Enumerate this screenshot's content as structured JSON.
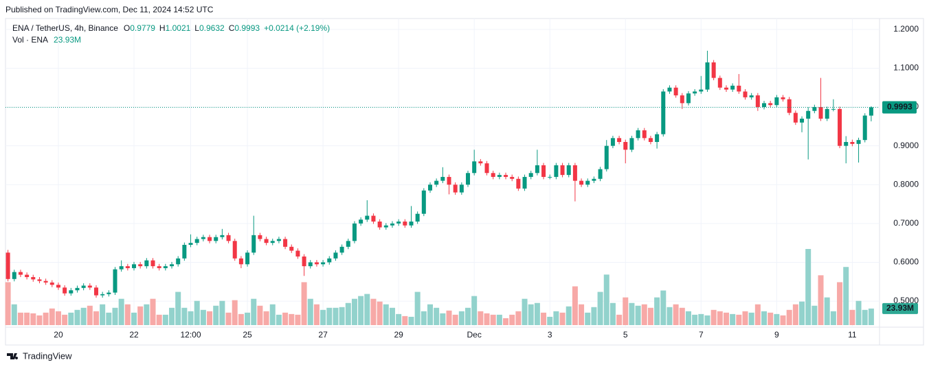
{
  "chart_data": {
    "type": "candlestick",
    "published": "Published on TradingView.com, Dec 11, 2024 14:52 UTC",
    "symbol": "ENA / TetherUS, 4h, Binance",
    "o_label": "O",
    "h_label": "H",
    "l_label": "L",
    "c_label": "C",
    "change": "+0.0214 (+2.19%)",
    "volume_title": "Vol · ENA",
    "volume_label": "23.93M",
    "brand": "TradingView",
    "up_color": "#089981",
    "down_color": "#f23645",
    "vol_up_color": "#92d2cc",
    "vol_down_color": "#f7a9a7",
    "grid": true,
    "ylim": [
      0.433,
      1.228
    ],
    "vlim": [
      0,
      110
    ],
    "yticks": [
      {
        "value": 0.5,
        "label": "0.5000"
      },
      {
        "value": 0.6,
        "label": "0.6000"
      },
      {
        "value": 0.7,
        "label": "0.7000"
      },
      {
        "value": 0.8,
        "label": "0.8000"
      },
      {
        "value": 0.9,
        "label": "0.9000"
      },
      {
        "value": 1.0,
        "label": "1.0000"
      },
      {
        "value": 1.1,
        "label": "1.1000"
      },
      {
        "value": 1.2,
        "label": "1.2000"
      }
    ],
    "categories": [
      null,
      null,
      null,
      null,
      null,
      null,
      null,
      null,
      "20",
      null,
      null,
      null,
      null,
      null,
      null,
      null,
      null,
      null,
      null,
      null,
      "22",
      null,
      null,
      null,
      null,
      null,
      null,
      null,
      null,
      "12:00",
      null,
      null,
      null,
      null,
      null,
      null,
      null,
      null,
      "25",
      null,
      null,
      null,
      null,
      null,
      null,
      null,
      null,
      null,
      null,
      null,
      "27",
      null,
      null,
      null,
      null,
      null,
      null,
      null,
      null,
      null,
      null,
      null,
      "29",
      null,
      null,
      null,
      null,
      null,
      null,
      null,
      null,
      null,
      null,
      null,
      "Dec",
      null,
      null,
      null,
      null,
      null,
      null,
      null,
      null,
      null,
      null,
      null,
      "3",
      null,
      null,
      null,
      null,
      null,
      null,
      null,
      null,
      null,
      null,
      null,
      "5",
      null,
      null,
      null,
      null,
      null,
      null,
      null,
      null,
      null,
      null,
      null,
      "7",
      null,
      null,
      null,
      null,
      null,
      null,
      null,
      null,
      null,
      null,
      null,
      "9",
      null,
      null,
      null,
      null,
      null,
      null,
      null,
      null,
      null,
      null,
      null,
      "11",
      null,
      null,
      null
    ],
    "open": [
      0.625,
      0.557,
      0.575,
      0.568,
      0.562,
      0.556,
      0.552,
      0.548,
      0.542,
      0.535,
      0.52,
      0.528,
      0.534,
      0.54,
      0.535,
      0.515,
      0.518,
      0.522,
      0.582,
      0.59,
      0.585,
      0.595,
      0.59,
      0.605,
      0.59,
      0.585,
      0.59,
      0.595,
      0.61,
      0.645,
      0.65,
      0.66,
      0.665,
      0.655,
      0.665,
      0.67,
      0.655,
      0.61,
      0.595,
      0.625,
      0.67,
      0.66,
      0.65,
      0.655,
      0.66,
      0.64,
      0.63,
      0.615,
      0.59,
      0.6,
      0.595,
      0.6,
      0.61,
      0.625,
      0.64,
      0.655,
      0.7,
      0.71,
      0.72,
      0.705,
      0.69,
      0.695,
      0.7,
      0.705,
      0.695,
      0.705,
      0.725,
      0.785,
      0.8,
      0.81,
      0.82,
      0.8,
      0.78,
      0.8,
      0.83,
      0.86,
      0.855,
      0.83,
      0.82,
      0.825,
      0.82,
      0.815,
      0.79,
      0.82,
      0.83,
      0.85,
      0.82,
      0.82,
      0.85,
      0.825,
      0.85,
      0.81,
      0.8,
      0.81,
      0.815,
      0.84,
      0.9,
      0.92,
      0.91,
      0.89,
      0.92,
      0.94,
      0.92,
      0.91,
      0.93,
      1.04,
      1.05,
      1.03,
      1.01,
      1.035,
      1.04,
      1.045,
      1.115,
      1.075,
      1.05,
      1.045,
      1.055,
      1.04,
      1.025,
      1.03,
      1.0,
      1.01,
      1.005,
      1.025,
      1.02,
      0.985,
      0.96,
      0.97,
      0.99,
      1.0,
      0.97,
      0.995,
      0.995,
      0.9,
      0.91,
      0.905,
      0.915,
      0.9779
    ],
    "high": [
      0.632,
      0.581,
      0.581,
      0.574,
      0.568,
      0.562,
      0.558,
      0.554,
      0.548,
      0.541,
      0.534,
      0.54,
      0.546,
      0.546,
      0.541,
      0.524,
      0.528,
      0.588,
      0.605,
      0.596,
      0.601,
      0.601,
      0.611,
      0.611,
      0.596,
      0.596,
      0.601,
      0.616,
      0.651,
      0.672,
      0.666,
      0.671,
      0.671,
      0.671,
      0.686,
      0.676,
      0.661,
      0.616,
      0.631,
      0.72,
      0.676,
      0.666,
      0.661,
      0.666,
      0.666,
      0.646,
      0.636,
      0.621,
      0.606,
      0.606,
      0.606,
      0.616,
      0.631,
      0.646,
      0.661,
      0.706,
      0.716,
      0.76,
      0.726,
      0.711,
      0.701,
      0.706,
      0.711,
      0.711,
      0.745,
      0.731,
      0.791,
      0.806,
      0.816,
      0.845,
      0.826,
      0.806,
      0.806,
      0.836,
      0.89,
      0.866,
      0.861,
      0.836,
      0.831,
      0.831,
      0.826,
      0.821,
      0.826,
      0.836,
      0.89,
      0.856,
      0.826,
      0.856,
      0.856,
      0.856,
      0.856,
      0.816,
      0.816,
      0.821,
      0.846,
      0.915,
      0.926,
      0.926,
      0.916,
      0.926,
      0.946,
      0.946,
      0.926,
      0.936,
      1.046,
      1.056,
      1.056,
      1.036,
      1.041,
      1.046,
      1.08,
      1.145,
      1.121,
      1.081,
      1.056,
      1.061,
      1.085,
      1.046,
      1.036,
      1.036,
      1.016,
      1.016,
      1.031,
      1.031,
      1.026,
      0.991,
      0.976,
      1.0,
      1.006,
      1.075,
      1.001,
      1.02,
      1.001,
      0.925,
      0.916,
      0.921,
      0.984,
      1.0021
    ],
    "low": [
      0.551,
      0.551,
      0.562,
      0.556,
      0.55,
      0.546,
      0.542,
      0.536,
      0.529,
      0.514,
      0.514,
      0.522,
      0.528,
      0.529,
      0.509,
      0.509,
      0.512,
      0.516,
      0.576,
      0.579,
      0.579,
      0.584,
      0.584,
      0.584,
      0.579,
      0.579,
      0.584,
      0.589,
      0.604,
      0.639,
      0.644,
      0.654,
      0.649,
      0.649,
      0.659,
      0.649,
      0.604,
      0.585,
      0.589,
      0.619,
      0.654,
      0.644,
      0.644,
      0.649,
      0.634,
      0.624,
      0.609,
      0.565,
      0.584,
      0.589,
      0.589,
      0.594,
      0.604,
      0.619,
      0.634,
      0.649,
      0.694,
      0.704,
      0.699,
      0.684,
      0.684,
      0.689,
      0.694,
      0.689,
      0.689,
      0.699,
      0.719,
      0.779,
      0.794,
      0.804,
      0.775,
      0.774,
      0.774,
      0.794,
      0.824,
      0.849,
      0.824,
      0.814,
      0.814,
      0.814,
      0.809,
      0.784,
      0.784,
      0.814,
      0.824,
      0.814,
      0.814,
      0.814,
      0.819,
      0.819,
      0.757,
      0.794,
      0.794,
      0.804,
      0.809,
      0.834,
      0.894,
      0.904,
      0.855,
      0.884,
      0.914,
      0.914,
      0.904,
      0.893,
      0.924,
      1.034,
      1.024,
      0.995,
      1.004,
      1.029,
      1.034,
      1.039,
      1.069,
      1.044,
      1.039,
      1.039,
      1.034,
      1.019,
      1.019,
      0.99,
      0.994,
      0.999,
      0.999,
      1.014,
      0.979,
      0.954,
      0.935,
      0.865,
      0.984,
      0.964,
      0.964,
      0.989,
      0.894,
      0.855,
      0.899,
      0.857,
      0.909,
      0.9632
    ],
    "close": [
      0.557,
      0.575,
      0.568,
      0.562,
      0.556,
      0.552,
      0.548,
      0.542,
      0.535,
      0.52,
      0.528,
      0.534,
      0.54,
      0.535,
      0.515,
      0.518,
      0.522,
      0.582,
      0.59,
      0.585,
      0.595,
      0.59,
      0.605,
      0.59,
      0.585,
      0.59,
      0.595,
      0.61,
      0.645,
      0.65,
      0.66,
      0.665,
      0.655,
      0.665,
      0.67,
      0.655,
      0.61,
      0.595,
      0.625,
      0.67,
      0.66,
      0.65,
      0.655,
      0.66,
      0.64,
      0.63,
      0.615,
      0.59,
      0.6,
      0.595,
      0.6,
      0.61,
      0.625,
      0.64,
      0.655,
      0.7,
      0.71,
      0.72,
      0.705,
      0.69,
      0.695,
      0.7,
      0.705,
      0.695,
      0.705,
      0.725,
      0.785,
      0.8,
      0.81,
      0.82,
      0.8,
      0.78,
      0.8,
      0.83,
      0.86,
      0.855,
      0.83,
      0.82,
      0.825,
      0.82,
      0.815,
      0.79,
      0.82,
      0.83,
      0.85,
      0.82,
      0.82,
      0.85,
      0.825,
      0.85,
      0.81,
      0.8,
      0.81,
      0.815,
      0.84,
      0.9,
      0.92,
      0.91,
      0.89,
      0.92,
      0.94,
      0.92,
      0.91,
      0.93,
      1.04,
      1.05,
      1.03,
      1.01,
      1.035,
      1.04,
      1.045,
      1.115,
      1.075,
      1.05,
      1.045,
      1.055,
      1.04,
      1.025,
      1.03,
      1.0,
      1.01,
      1.005,
      1.025,
      1.02,
      0.985,
      0.96,
      0.97,
      0.99,
      1.0,
      0.97,
      0.995,
      0.995,
      0.9,
      0.91,
      0.905,
      0.915,
      0.978,
      0.9993
    ],
    "volume": [
      62,
      30,
      18,
      18,
      17,
      14,
      18,
      24,
      20,
      15,
      18,
      22,
      25,
      28,
      20,
      30,
      18,
      25,
      38,
      30,
      18,
      27,
      30,
      38,
      15,
      15,
      25,
      48,
      25,
      20,
      35,
      22,
      20,
      28,
      35,
      18,
      36,
      16,
      18,
      38,
      28,
      20,
      30,
      15,
      18,
      16,
      15,
      62,
      38,
      30,
      22,
      25,
      25,
      26,
      32,
      38,
      42,
      45,
      38,
      34,
      30,
      25,
      16,
      13,
      12,
      48,
      20,
      30,
      25,
      17,
      21,
      15,
      20,
      25,
      42,
      20,
      17,
      15,
      15,
      10,
      15,
      20,
      38,
      30,
      32,
      18,
      12,
      20,
      18,
      27,
      56,
      30,
      18,
      26,
      48,
      73,
      32,
      15,
      40,
      32,
      28,
      30,
      25,
      40,
      50,
      26,
      30,
      25,
      20,
      15,
      16,
      14,
      22,
      20,
      18,
      16,
      15,
      20,
      18,
      30,
      20,
      18,
      16,
      14,
      22,
      30,
      34,
      110,
      28,
      72,
      40,
      20,
      62,
      84,
      22,
      35,
      22,
      23.93
    ]
  }
}
